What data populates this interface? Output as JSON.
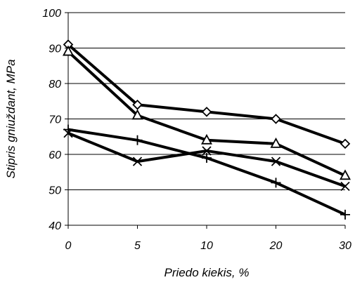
{
  "chart_data": {
    "type": "line",
    "title": "",
    "xlabel": "Priedo kiekis, %",
    "ylabel": "Stipris gniuždant, MPa",
    "categories": [
      "0",
      "5",
      "10",
      "20",
      "30"
    ],
    "ylim": [
      40,
      100
    ],
    "yticks": [
      "40",
      "50",
      "60",
      "70",
      "80",
      "90",
      "100"
    ],
    "grid": "horizontal",
    "series": [
      {
        "marker": "diamond",
        "values": [
          91,
          74,
          72,
          70,
          63
        ]
      },
      {
        "marker": "triangle",
        "values": [
          89,
          71,
          64,
          63,
          54
        ]
      },
      {
        "marker": "x",
        "values": [
          66,
          58,
          61,
          58,
          51
        ]
      },
      {
        "marker": "plus",
        "values": [
          67,
          64,
          59,
          52,
          43
        ]
      }
    ],
    "colors": {
      "line": "#000000",
      "grid": "#000000",
      "marker_fill": "#ffffff"
    }
  }
}
